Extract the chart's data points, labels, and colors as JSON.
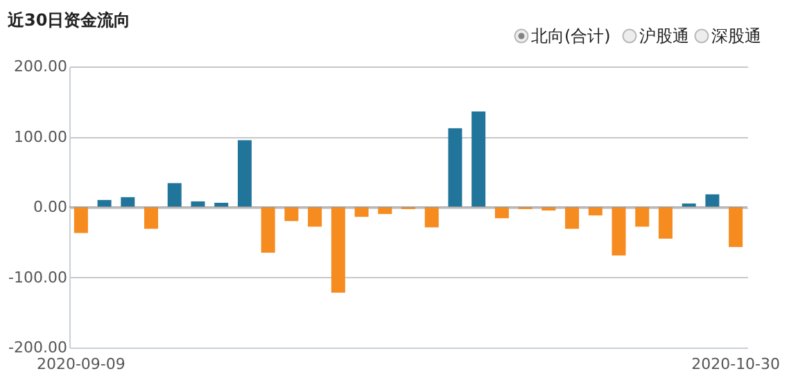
{
  "chart_data": {
    "type": "bar",
    "title": "近30日资金流向",
    "categories": [
      "2020-09-09",
      null,
      null,
      null,
      null,
      null,
      null,
      null,
      null,
      null,
      null,
      null,
      null,
      null,
      null,
      null,
      null,
      null,
      null,
      null,
      null,
      null,
      null,
      null,
      null,
      null,
      null,
      null,
      "2020-10-30"
    ],
    "values": [
      -37,
      10,
      14,
      -31,
      34,
      8,
      6,
      95,
      -65,
      -20,
      -28,
      -122,
      -14,
      -10,
      -3,
      -29,
      112,
      136,
      -16,
      -3,
      -5,
      -31,
      -12,
      -69,
      -28,
      -45,
      5,
      18,
      -57
    ],
    "colors": [
      "#f68b1f",
      "#21759b",
      "#21759b",
      "#f68b1f",
      "#21759b",
      "#21759b",
      "#21759b",
      "#21759b",
      "#f68b1f",
      "#f68b1f",
      "#f68b1f",
      "#f68b1f",
      "#f68b1f",
      "#f68b1f",
      "#f68b1f",
      "#f68b1f",
      "#21759b",
      "#21759b",
      "#f68b1f",
      "#f68b1f",
      "#f68b1f",
      "#f68b1f",
      "#f68b1f",
      "#f68b1f",
      "#f68b1f",
      "#f68b1f",
      "#21759b",
      "#21759b",
      "#f68b1f"
    ],
    "ylim": [
      -200,
      200
    ],
    "yticks": [
      {
        "value": -200,
        "label": "-200.00"
      },
      {
        "value": -100,
        "label": "-100.00"
      },
      {
        "value": 0,
        "label": "0.00"
      },
      {
        "value": 100,
        "label": "100.00"
      },
      {
        "value": 200,
        "label": "200.00"
      }
    ],
    "grid": "y",
    "ref_lines": [
      {
        "axis": "y",
        "value": 0,
        "color": "#999999"
      }
    ],
    "annotations": [
      "北向(合计)",
      "沪股通",
      "深股通"
    ]
  }
}
